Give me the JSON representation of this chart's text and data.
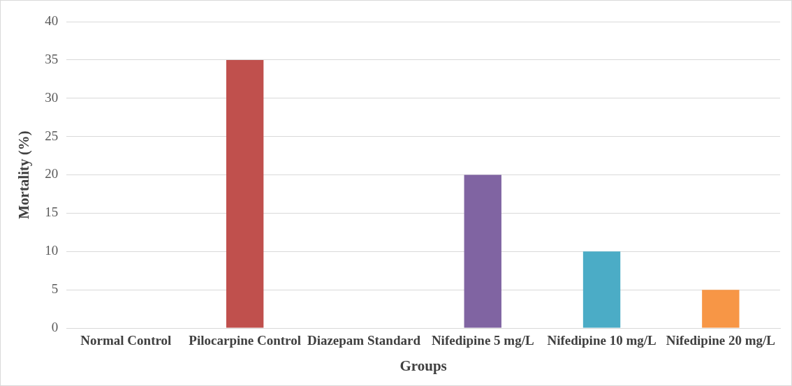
{
  "chart_data": {
    "type": "bar",
    "xlabel": "Groups",
    "ylabel": "Mortality (%)",
    "categories": [
      "Normal Control",
      "Pilocarpine Control",
      "Diazepam Standard",
      "Nifedipine 5 mg/L",
      "Nifedipine 10 mg/L",
      "Nifedipine 20 mg/L"
    ],
    "values": [
      0,
      35,
      0,
      20,
      10,
      5
    ],
    "colors": [
      "#4f81bd",
      "#c0504d",
      "#9bbb59",
      "#8064a2",
      "#4bacc6",
      "#f79646"
    ],
    "ylim": [
      0,
      40
    ],
    "yticks": [
      0,
      5,
      10,
      15,
      20,
      25,
      30,
      35,
      40
    ],
    "grid": "y",
    "legend": false
  }
}
